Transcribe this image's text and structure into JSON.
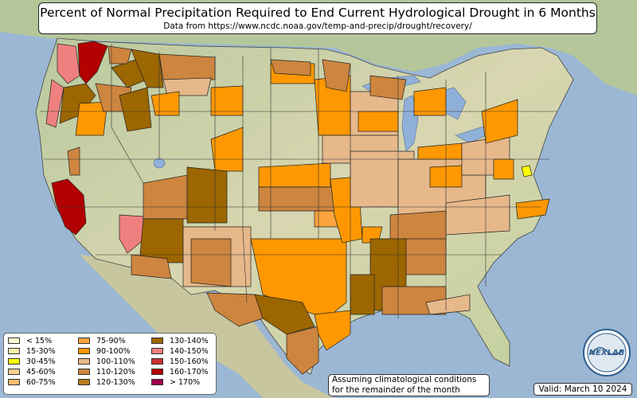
{
  "header": {
    "title": "Percent of Normal Precipitation Required to End Current Hydrological Drought in 6 Months",
    "subtitle": "Data from https://www.ncdc.noaa.gov/temp-and-precip/drought/recovery/"
  },
  "legend": {
    "items": [
      {
        "label": "< 15%",
        "color": "#ffffd4"
      },
      {
        "label": "15-30%",
        "color": "#fff1a8"
      },
      {
        "label": "30-45%",
        "color": "#ffff00"
      },
      {
        "label": "45-60%",
        "color": "#fdd090"
      },
      {
        "label": "60-75%",
        "color": "#fdbb6e"
      },
      {
        "label": "75-90%",
        "color": "#fda340"
      },
      {
        "label": "90-100%",
        "color": "#ff9800"
      },
      {
        "label": "100-110%",
        "color": "#e6b88a"
      },
      {
        "label": "110-120%",
        "color": "#cd853f"
      },
      {
        "label": "120-130%",
        "color": "#b87a1e"
      },
      {
        "label": "130-140%",
        "color": "#9c6600"
      },
      {
        "label": "140-150%",
        "color": "#f08080"
      },
      {
        "label": "150-160%",
        "color": "#cd3333"
      },
      {
        "label": "160-170%",
        "color": "#b30000"
      },
      {
        "label": "> 170%",
        "color": "#a0004a"
      }
    ]
  },
  "note": {
    "line1": "Assuming climatological conditions",
    "line2": "for the remainder of the month"
  },
  "valid": "Valid: March 10 2024",
  "logo_text": "NEXLAB",
  "colors": {
    "ocean": "#9bb7d4",
    "land": "#cfd7b0",
    "mountain": "#c9bd9c",
    "forest": "#a8c18a",
    "lake": "#8fb0d8",
    "border": "#222222"
  }
}
